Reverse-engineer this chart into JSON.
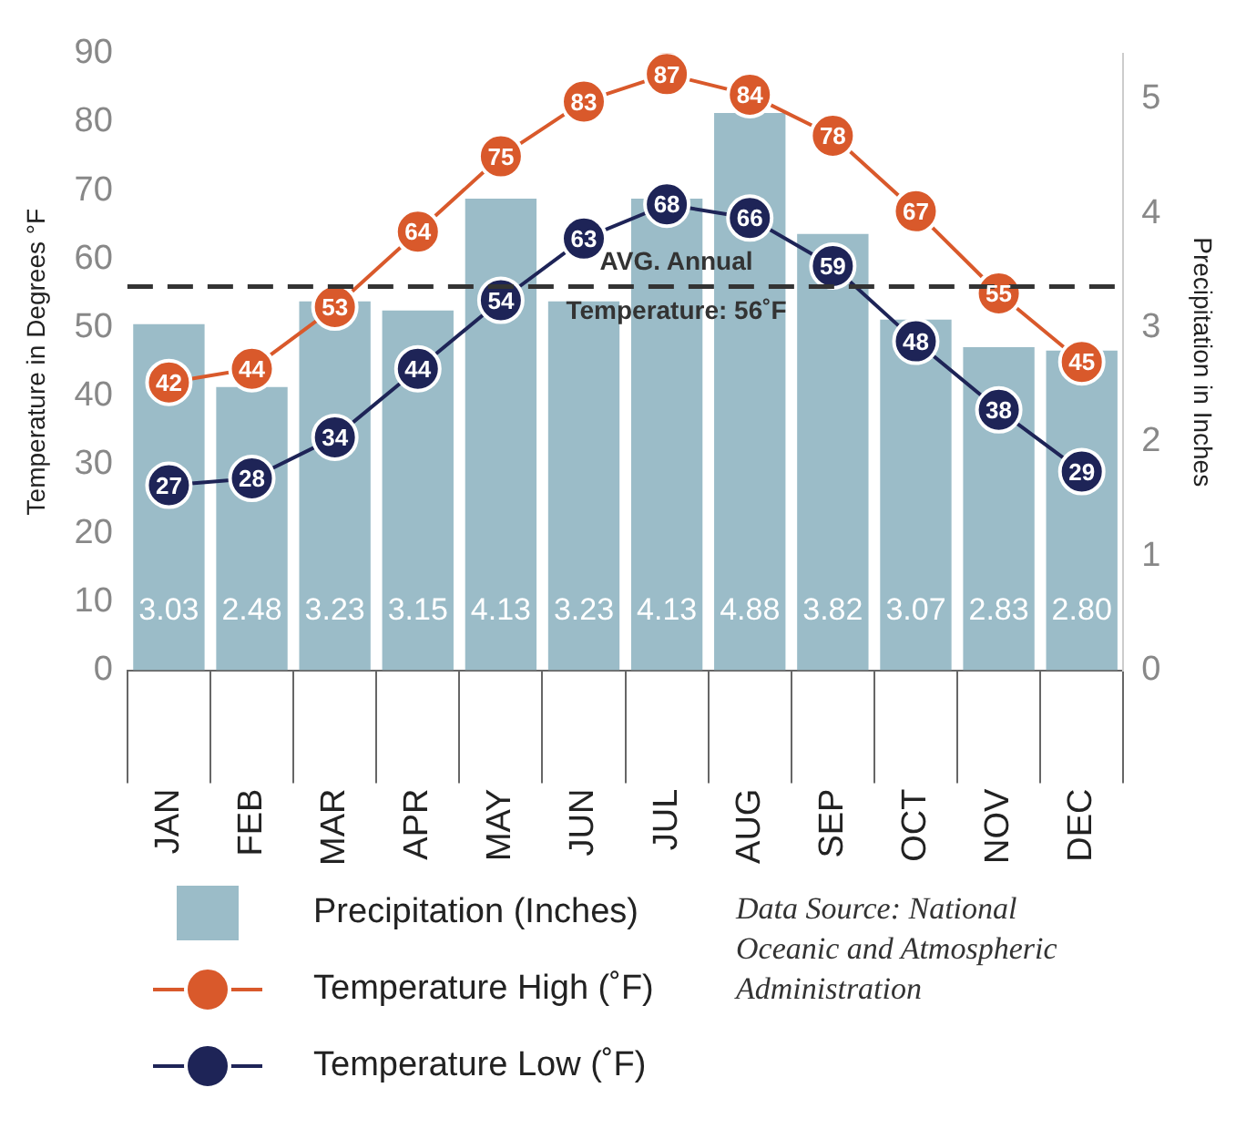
{
  "chart_data": {
    "type": "bar",
    "categories": [
      "JAN",
      "FEB",
      "MAR",
      "APR",
      "MAY",
      "JUN",
      "JUL",
      "AUG",
      "SEP",
      "OCT",
      "NOV",
      "DEC"
    ],
    "series": [
      {
        "name": "Precipitation (Inches)",
        "axis": "y2",
        "color": "#9bbcc8",
        "values": [
          3.03,
          2.48,
          3.23,
          3.15,
          4.13,
          3.23,
          4.13,
          4.88,
          3.82,
          3.07,
          2.83,
          2.8
        ],
        "value_labels": [
          "3.03",
          "2.48",
          "3.23",
          "3.15",
          "4.13",
          "3.23",
          "4.13",
          "4.88",
          "3.82",
          "3.07",
          "2.83",
          "2.80"
        ]
      },
      {
        "name": "Temperature High (˚F)",
        "type": "line",
        "color": "#d9592b",
        "values": [
          42,
          44,
          53,
          64,
          75,
          83,
          87,
          84,
          78,
          67,
          55,
          45
        ]
      },
      {
        "name": "Temperature Low (˚F)",
        "type": "line",
        "color": "#1e2457",
        "values": [
          27,
          28,
          34,
          44,
          54,
          63,
          68,
          66,
          59,
          48,
          38,
          29
        ]
      }
    ],
    "ylabel": "Temperature in Degrees °F",
    "y2label": "Precipitation in Inches",
    "ylim": [
      0,
      90
    ],
    "yticks": [
      0,
      10,
      20,
      30,
      40,
      50,
      60,
      70,
      80,
      90
    ],
    "y2lim": [
      0,
      5.4
    ],
    "y2ticks": [
      0,
      1,
      2,
      3,
      4,
      5
    ],
    "ref_lines": [
      {
        "axis": "y",
        "value": 56,
        "label": "AVG. Annual Temperature: 56˚F",
        "color": "#333333",
        "line_style": "dashed"
      }
    ],
    "annotations": [
      "Data Source: National Oceanic and Atmospheric Administration"
    ],
    "data_labels": true,
    "marker": "circle",
    "legend": "bottom",
    "grid": false
  }
}
